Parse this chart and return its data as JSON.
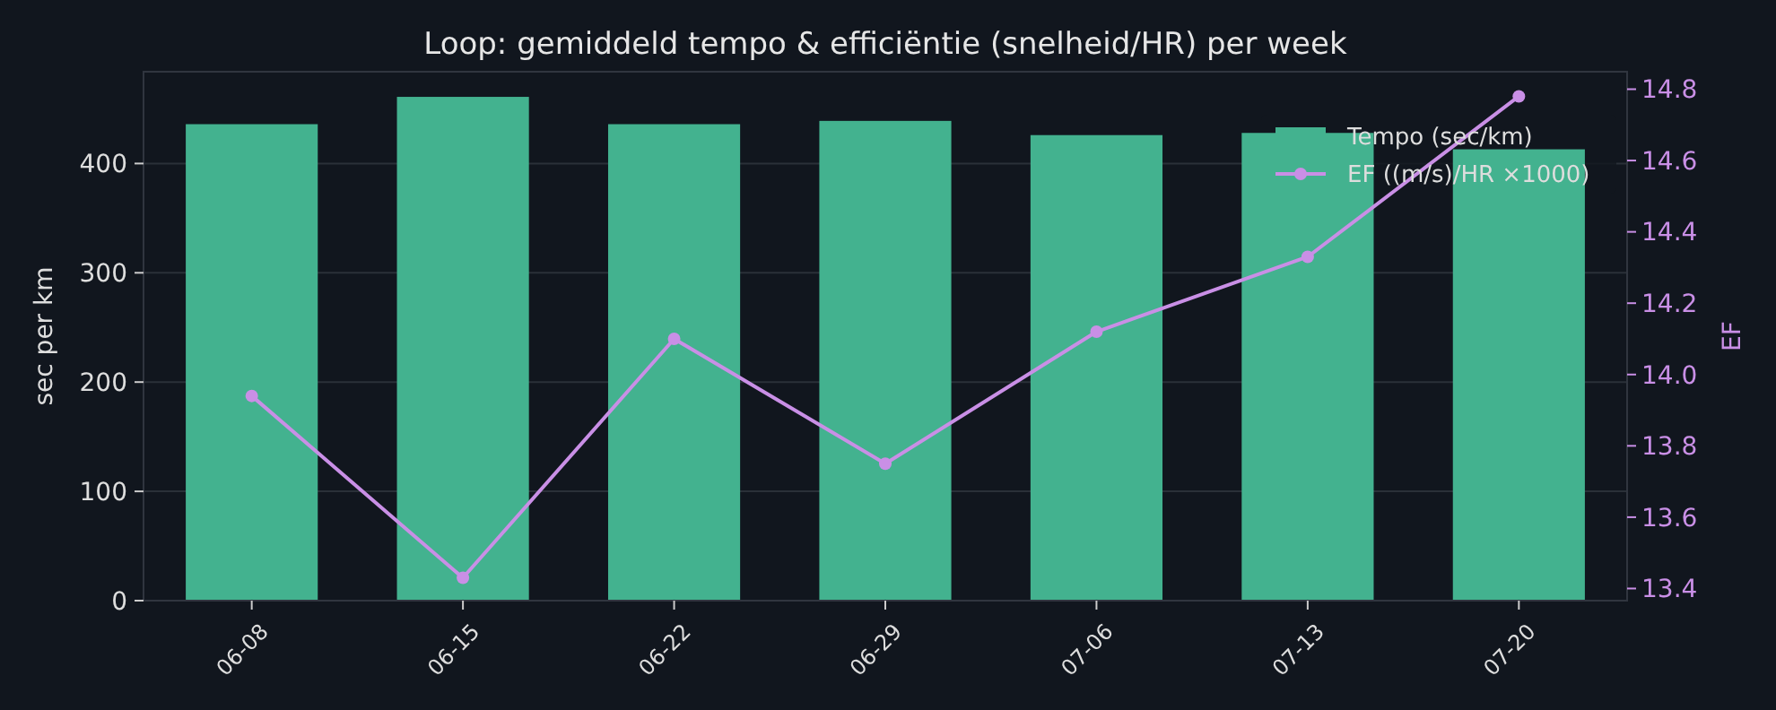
{
  "chart_data": {
    "type": "bar",
    "title": "Loop: gemiddeld tempo & efficiëntie (snelheid/HR) per week",
    "ylabel": "sec per km",
    "y2label": "EF",
    "categories": [
      "06-08",
      "06-15",
      "06-22",
      "06-29",
      "07-06",
      "07-13",
      "07-20"
    ],
    "series": [
      {
        "name": "Tempo (sec/km)",
        "color": "#43b28f",
        "values": [
          436,
          461,
          436,
          439,
          426,
          428,
          413
        ]
      },
      {
        "name": "EF ((m/s)/HR ×1000)",
        "type": "line",
        "axis": "y2",
        "color": "#c98fe6",
        "values": [
          13.94,
          13.43,
          14.1,
          13.75,
          14.12,
          14.33,
          14.78
        ]
      }
    ],
    "ylim": [
      0,
      484
    ],
    "yticks": [
      0,
      100,
      200,
      300,
      400
    ],
    "y2lim": [
      13.366,
      14.849
    ],
    "y2ticks": [
      {
        "value": 13.4,
        "label": "13.4"
      },
      {
        "value": 13.6,
        "label": "13.6"
      },
      {
        "value": 13.8,
        "label": "13.8"
      },
      {
        "value": 14.0,
        "label": "14.0"
      },
      {
        "value": 14.2,
        "label": "14.2"
      },
      {
        "value": 14.4,
        "label": "14.4"
      },
      {
        "value": 14.6,
        "label": "14.6"
      },
      {
        "value": 14.8,
        "label": "14.8"
      }
    ],
    "grid": "y",
    "legend": "top right",
    "marker": "circle"
  }
}
